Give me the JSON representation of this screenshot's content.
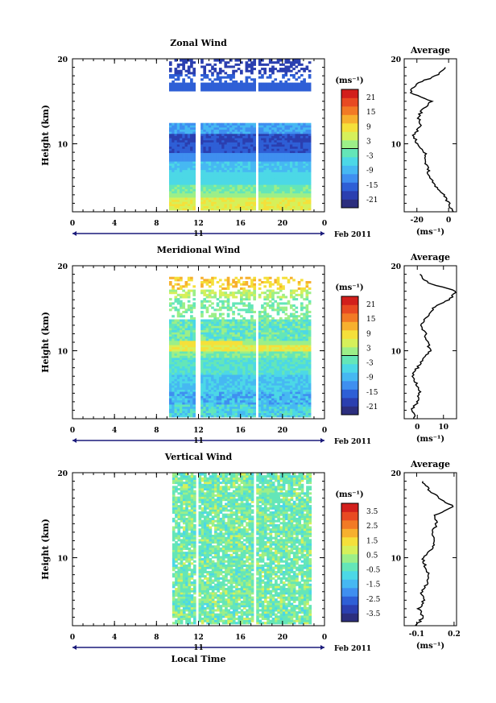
{
  "colors": {
    "scale": [
      "#2c2e7e",
      "#2b3fb0",
      "#2e5fd6",
      "#3f8ff0",
      "#46b8f2",
      "#4cd8e6",
      "#64e6b8",
      "#9cef88",
      "#d6f05a",
      "#f5e03a",
      "#f7b02e",
      "#f27a25",
      "#e84a22",
      "#d21f1c"
    ]
  },
  "chart_data": [
    {
      "type": "heatmap",
      "title": "Zonal Wind",
      "ylabel": "Height (km)",
      "xlabel": "",
      "x_ticks": [
        "0",
        "4",
        "8",
        "12",
        "16",
        "20",
        "0"
      ],
      "y_ticks": [
        "20",
        "10"
      ],
      "xlim": [
        0,
        24
      ],
      "ylim": [
        2,
        20
      ],
      "date_axis": {
        "day": "11",
        "month_year": "Feb 2011"
      },
      "colorbar": {
        "unit": "(ms⁻¹)",
        "ticks": [
          "21",
          "15",
          "9",
          "3",
          "-3",
          "-9",
          "-15",
          "-21"
        ]
      },
      "average": {
        "title": "Average",
        "xlabel": "(ms⁻¹)",
        "x_ticks": [
          "-20",
          "0"
        ],
        "xlim": [
          -28,
          5
        ],
        "y_ticks": [
          "20",
          "10"
        ],
        "height": [
          2,
          3,
          4,
          5,
          6,
          7,
          8,
          9,
          10,
          11,
          12,
          13,
          14,
          15,
          16,
          17,
          18,
          19
        ],
        "value": [
          3,
          0,
          -3,
          -8,
          -12,
          -13,
          -15,
          -15,
          -20,
          -22,
          -18,
          -19,
          -17,
          -11,
          -24,
          -21,
          -8,
          -2
        ]
      }
    },
    {
      "type": "heatmap",
      "title": "Meridional Wind",
      "ylabel": "Height (km)",
      "xlabel": "",
      "x_ticks": [
        "0",
        "4",
        "8",
        "12",
        "16",
        "20",
        "0"
      ],
      "y_ticks": [
        "20",
        "10"
      ],
      "xlim": [
        0,
        24
      ],
      "ylim": [
        2,
        20
      ],
      "date_axis": {
        "day": "11",
        "month_year": "Feb 2011"
      },
      "colorbar": {
        "unit": "(ms⁻¹)",
        "ticks": [
          "21",
          "15",
          "9",
          "3",
          "-3",
          "-9",
          "-15",
          "-21"
        ]
      },
      "average": {
        "title": "Average",
        "xlabel": "(ms⁻¹)",
        "x_ticks": [
          "0",
          "10"
        ],
        "xlim": [
          -5,
          15
        ],
        "y_ticks": [
          "20",
          "10"
        ],
        "height": [
          2,
          3,
          4,
          5,
          6,
          7,
          8,
          9,
          10,
          11,
          12,
          13,
          14,
          15,
          16,
          17,
          18,
          19
        ],
        "value": [
          -1,
          -2,
          0,
          1,
          0,
          -2,
          0,
          2,
          5,
          4,
          3,
          1,
          4,
          6,
          12,
          15,
          4,
          1
        ]
      }
    },
    {
      "type": "heatmap",
      "title": "Vertical Wind",
      "ylabel": "Height (km)",
      "xlabel": "Local Time",
      "x_ticks": [
        "0",
        "4",
        "8",
        "12",
        "16",
        "20",
        "0"
      ],
      "y_ticks": [
        "20",
        "10"
      ],
      "xlim": [
        0,
        24
      ],
      "ylim": [
        2,
        20
      ],
      "date_axis": {
        "day": "11",
        "month_year": "Feb 2011"
      },
      "colorbar": {
        "unit": "(ms⁻¹)",
        "ticks": [
          "3.5",
          "2.5",
          "1.5",
          "0.5",
          "-0.5",
          "-1.5",
          "-2.5",
          "-3.5"
        ]
      },
      "average": {
        "title": "Average",
        "xlabel": "(ms⁻¹)",
        "x_ticks": [
          "-0.1",
          "0.2"
        ],
        "xlim": [
          -0.2,
          0.22
        ],
        "y_ticks": [
          "20",
          "10"
        ],
        "height": [
          2,
          3,
          4,
          5,
          6,
          7,
          8,
          9,
          10,
          11,
          12,
          13,
          14,
          15,
          16,
          17,
          18,
          19
        ],
        "value": [
          -0.1,
          -0.05,
          -0.08,
          -0.04,
          -0.06,
          -0.02,
          0.0,
          -0.03,
          -0.05,
          0.02,
          0.05,
          0.03,
          0.06,
          0.05,
          0.2,
          0.08,
          0.0,
          -0.05
        ]
      }
    }
  ]
}
